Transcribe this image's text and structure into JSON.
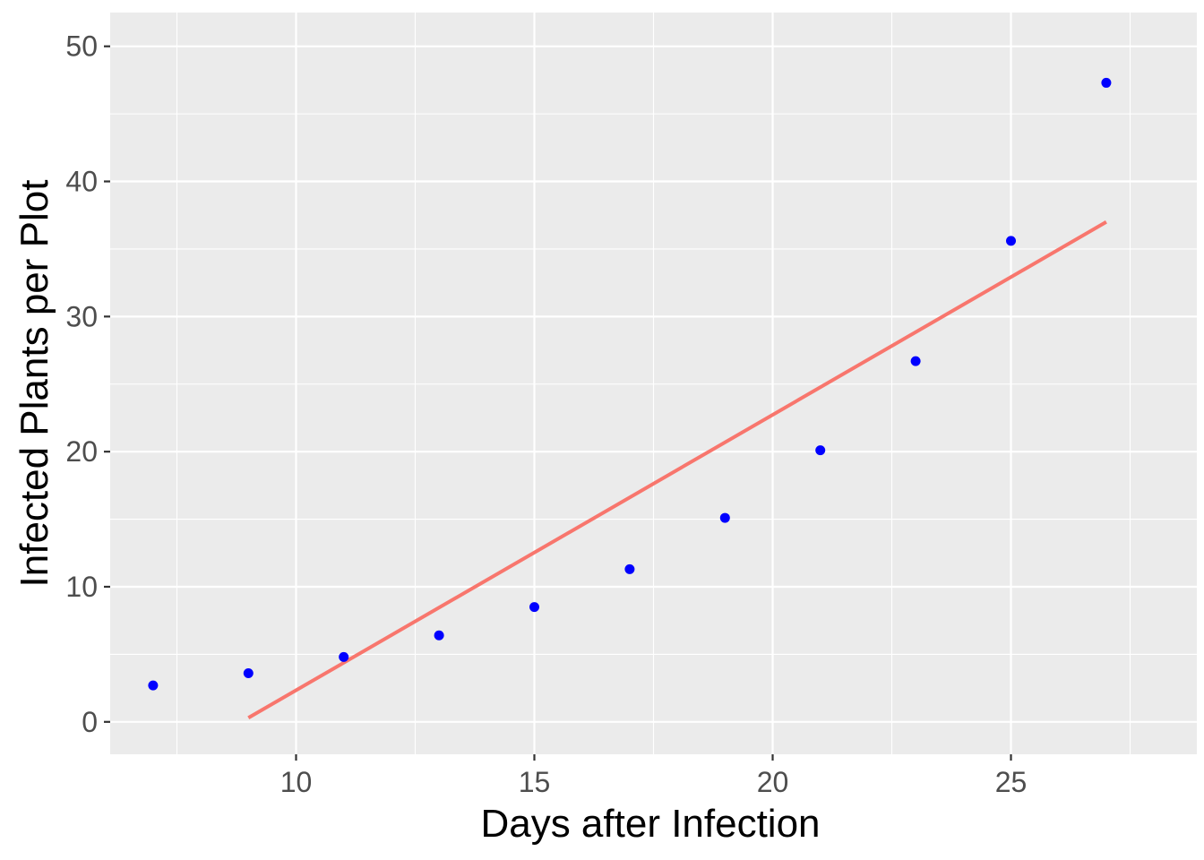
{
  "chart_data": {
    "type": "scatter",
    "title": "",
    "xlabel": "Days after Infection",
    "ylabel": "Infected Plants per Plot",
    "xlim": [
      6.1,
      28.9
    ],
    "ylim": [
      -2.4,
      52.5
    ],
    "x_ticks": [
      10,
      15,
      20,
      25
    ],
    "y_ticks": [
      0,
      10,
      20,
      30,
      40,
      50
    ],
    "grid": true,
    "legend": "none",
    "series": [
      {
        "kind": "points",
        "color": "#0000ff",
        "x": [
          7,
          9,
          11,
          13,
          15,
          17,
          19,
          21,
          23,
          25,
          27
        ],
        "y": [
          2.7,
          3.6,
          4.8,
          6.4,
          8.5,
          11.3,
          15.1,
          20.1,
          26.7,
          35.6,
          47.3
        ]
      },
      {
        "kind": "line",
        "color": "#f8766d",
        "x": [
          9,
          27
        ],
        "y": [
          0.3,
          37.0
        ]
      }
    ]
  }
}
